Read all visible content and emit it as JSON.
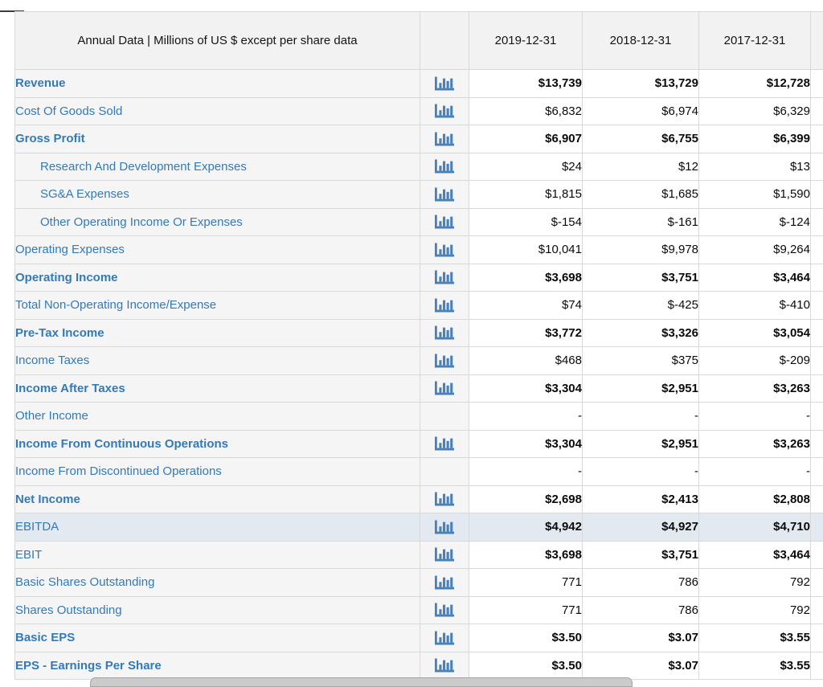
{
  "table": {
    "header": {
      "label": "Annual Data | Millions of US $ except per share data",
      "columns": [
        "2019-12-31",
        "2018-12-31",
        "2017-12-31",
        ""
      ]
    },
    "rows": [
      {
        "label": "Revenue",
        "label_bold": true,
        "value_bold": true,
        "indent": false,
        "icon": true,
        "highlight": false,
        "values": [
          "$13,739",
          "$13,729",
          "$12,728",
          ""
        ]
      },
      {
        "label": "Cost Of Goods Sold",
        "label_bold": false,
        "value_bold": false,
        "indent": false,
        "icon": true,
        "highlight": false,
        "values": [
          "$6,832",
          "$6,974",
          "$6,329",
          ""
        ]
      },
      {
        "label": "Gross Profit",
        "label_bold": true,
        "value_bold": true,
        "indent": false,
        "icon": true,
        "highlight": false,
        "values": [
          "$6,907",
          "$6,755",
          "$6,399",
          ""
        ]
      },
      {
        "label": "Research And Development Expenses",
        "label_bold": false,
        "value_bold": false,
        "indent": true,
        "icon": true,
        "highlight": false,
        "values": [
          "$24",
          "$12",
          "$13",
          ""
        ]
      },
      {
        "label": "SG&A Expenses",
        "label_bold": false,
        "value_bold": false,
        "indent": true,
        "icon": true,
        "highlight": false,
        "values": [
          "$1,815",
          "$1,685",
          "$1,590",
          ""
        ]
      },
      {
        "label": "Other Operating Income Or Expenses",
        "label_bold": false,
        "value_bold": false,
        "indent": true,
        "icon": true,
        "highlight": false,
        "values": [
          "$-154",
          "$-161",
          "$-124",
          ""
        ]
      },
      {
        "label": "Operating Expenses",
        "label_bold": false,
        "value_bold": false,
        "indent": false,
        "icon": true,
        "highlight": false,
        "values": [
          "$10,041",
          "$9,978",
          "$9,264",
          ""
        ]
      },
      {
        "label": "Operating Income",
        "label_bold": true,
        "value_bold": true,
        "indent": false,
        "icon": true,
        "highlight": false,
        "values": [
          "$3,698",
          "$3,751",
          "$3,464",
          ""
        ]
      },
      {
        "label": "Total Non-Operating Income/Expense",
        "label_bold": false,
        "value_bold": false,
        "indent": false,
        "icon": true,
        "highlight": false,
        "values": [
          "$74",
          "$-425",
          "$-410",
          ""
        ]
      },
      {
        "label": "Pre-Tax Income",
        "label_bold": true,
        "value_bold": true,
        "indent": false,
        "icon": true,
        "highlight": false,
        "values": [
          "$3,772",
          "$3,326",
          "$3,054",
          ""
        ]
      },
      {
        "label": "Income Taxes",
        "label_bold": false,
        "value_bold": false,
        "indent": false,
        "icon": true,
        "highlight": false,
        "values": [
          "$468",
          "$375",
          "$-209",
          ""
        ]
      },
      {
        "label": "Income After Taxes",
        "label_bold": true,
        "value_bold": true,
        "indent": false,
        "icon": true,
        "highlight": false,
        "values": [
          "$3,304",
          "$2,951",
          "$3,263",
          ""
        ]
      },
      {
        "label": "Other Income",
        "label_bold": false,
        "value_bold": false,
        "indent": false,
        "icon": false,
        "highlight": false,
        "values": [
          "-",
          "-",
          "-",
          ""
        ]
      },
      {
        "label": "Income From Continuous Operations",
        "label_bold": true,
        "value_bold": true,
        "indent": false,
        "icon": true,
        "highlight": false,
        "values": [
          "$3,304",
          "$2,951",
          "$3,263",
          ""
        ]
      },
      {
        "label": "Income From Discontinued Operations",
        "label_bold": false,
        "value_bold": false,
        "indent": false,
        "icon": false,
        "highlight": false,
        "values": [
          "-",
          "-",
          "-",
          ""
        ]
      },
      {
        "label": "Net Income",
        "label_bold": true,
        "value_bold": true,
        "indent": false,
        "icon": true,
        "highlight": false,
        "values": [
          "$2,698",
          "$2,413",
          "$2,808",
          ""
        ]
      },
      {
        "label": "EBITDA",
        "label_bold": false,
        "value_bold": true,
        "indent": false,
        "icon": true,
        "highlight": true,
        "values": [
          "$4,942",
          "$4,927",
          "$4,710",
          ""
        ]
      },
      {
        "label": "EBIT",
        "label_bold": false,
        "value_bold": true,
        "indent": false,
        "icon": true,
        "highlight": false,
        "values": [
          "$3,698",
          "$3,751",
          "$3,464",
          ""
        ]
      },
      {
        "label": "Basic Shares Outstanding",
        "label_bold": false,
        "value_bold": false,
        "indent": false,
        "icon": true,
        "highlight": false,
        "values": [
          "771",
          "786",
          "792",
          ""
        ]
      },
      {
        "label": "Shares Outstanding",
        "label_bold": false,
        "value_bold": false,
        "indent": false,
        "icon": true,
        "highlight": false,
        "values": [
          "771",
          "786",
          "792",
          ""
        ]
      },
      {
        "label": "Basic EPS",
        "label_bold": true,
        "value_bold": true,
        "indent": false,
        "icon": true,
        "highlight": false,
        "values": [
          "$3.50",
          "$3.07",
          "$3.55",
          ""
        ]
      },
      {
        "label": "EPS - Earnings Per Share",
        "label_bold": true,
        "value_bold": true,
        "indent": false,
        "icon": true,
        "highlight": false,
        "values": [
          "$3.50",
          "$3.07",
          "$3.55",
          ""
        ]
      }
    ]
  },
  "icons": {
    "chart_icon_name": "bar-chart-icon"
  },
  "colors": {
    "link_blue": "#337ab7",
    "icon_blue": "#4a80b8",
    "highlight_row": "#e2e9f1",
    "header_bg": "#f2f2f2",
    "label_bg": "#f5f5f5",
    "border": "#d9d9d9"
  }
}
